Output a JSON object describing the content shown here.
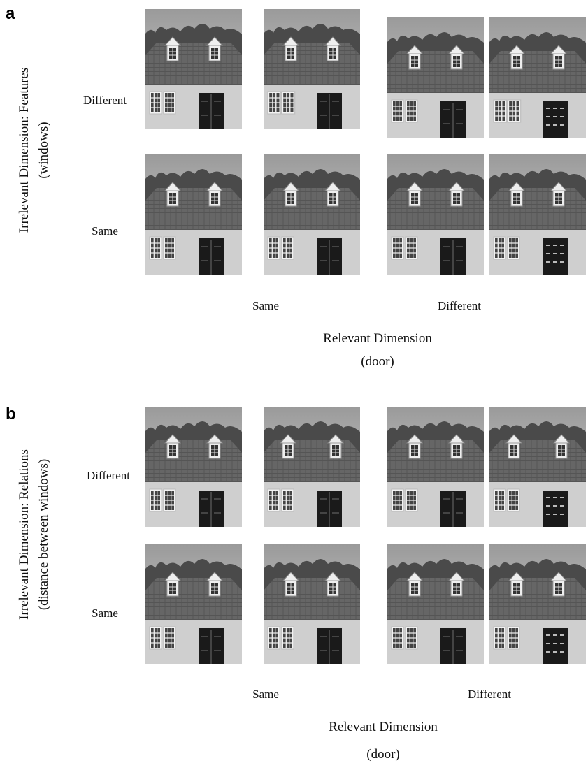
{
  "panels": [
    {
      "label": "a",
      "y_title": [
        "Irrelevant Dimension: Features",
        "(windows)"
      ],
      "row_labels": [
        "Different",
        "Same"
      ],
      "col_labels": [
        "Same",
        "Different"
      ],
      "x_title": "Relevant Dimension",
      "x_subtitle": "(door)"
    },
    {
      "label": "b",
      "y_title": [
        "Irrelevant Dimension: Relations",
        "(distance between windows)"
      ],
      "row_labels": [
        "Different",
        "Same"
      ],
      "col_labels": [
        "Same",
        "Different"
      ],
      "x_title": "Relevant Dimension",
      "x_subtitle": "(door)"
    }
  ]
}
